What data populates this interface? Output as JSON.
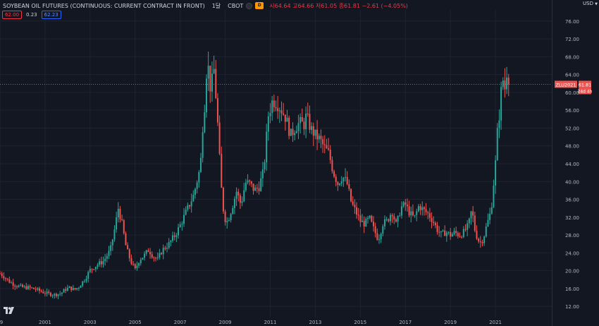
{
  "legend": {
    "title": "SOYBEAN OIL FUTURES (CONTINUOUS: CURRENT CONTRACT IN FRONT)",
    "interval": "1달",
    "exchange": "CBOT",
    "flag_letter": "D",
    "ohlc": "시64.64 고64.66 저61.05 종61.81 −2.61 (−4.05%)"
  },
  "quote": {
    "bid": "62.00",
    "spread": "0.23",
    "ask": "62.23"
  },
  "currency": "USD",
  "price_tag": {
    "symbol": "ZLU2021",
    "price": "61.81",
    "countdown": "24d 4h"
  },
  "colors": {
    "up": "#26a69a",
    "down": "#ef5350",
    "background": "#131722",
    "grid": "#1f2330",
    "text": "#b2b5be"
  },
  "chart_data": {
    "type": "candlestick",
    "title": "SOYBEAN OIL FUTURES (CONTINUOUS: CURRENT CONTRACT IN FRONT)",
    "interval": "monthly",
    "y_ticks": [
      "12.00",
      "16.00",
      "20.00",
      "24.00",
      "28.00",
      "32.00",
      "36.00",
      "40.00",
      "44.00",
      "48.00",
      "52.00",
      "56.00",
      "60.00",
      "64.00",
      "68.00",
      "72.00",
      "76.00"
    ],
    "ylim": [
      9.5,
      78.5
    ],
    "x_ticks": [
      "9",
      "2001",
      "2003",
      "2005",
      "2007",
      "2009",
      "2011",
      "2013",
      "2015",
      "2017",
      "2019",
      "2021"
    ],
    "xlim": [
      1999.0,
      2023.5
    ],
    "last_price": 61.81,
    "close_series": [
      [
        1999.0,
        19.4
      ],
      [
        1999.2,
        18.6
      ],
      [
        1999.4,
        17.6
      ],
      [
        1999.7,
        16.7
      ],
      [
        2000.0,
        16.3
      ],
      [
        2000.3,
        16.2
      ],
      [
        2000.6,
        15.8
      ],
      [
        2000.9,
        15.2
      ],
      [
        2001.1,
        14.9
      ],
      [
        2001.4,
        14.6
      ],
      [
        2001.7,
        14.9
      ],
      [
        2001.9,
        15.8
      ],
      [
        2002.1,
        16.2
      ],
      [
        2002.3,
        15.7
      ],
      [
        2002.5,
        16.4
      ],
      [
        2002.8,
        18.4
      ],
      [
        2003.0,
        20.2
      ],
      [
        2003.3,
        21.3
      ],
      [
        2003.6,
        22.2
      ],
      [
        2003.9,
        24.6
      ],
      [
        2004.1,
        29.6
      ],
      [
        2004.25,
        34.0
      ],
      [
        2004.4,
        31.0
      ],
      [
        2004.6,
        25.2
      ],
      [
        2004.8,
        22.2
      ],
      [
        2005.0,
        20.2
      ],
      [
        2005.2,
        22.6
      ],
      [
        2005.4,
        23.4
      ],
      [
        2005.6,
        24.7
      ],
      [
        2005.8,
        23.2
      ],
      [
        2006.0,
        22.5
      ],
      [
        2006.2,
        24.6
      ],
      [
        2006.5,
        26.0
      ],
      [
        2006.8,
        28.2
      ],
      [
        2007.0,
        30.2
      ],
      [
        2007.3,
        33.6
      ],
      [
        2007.6,
        37.0
      ],
      [
        2007.9,
        43.4
      ],
      [
        2008.0,
        52.5
      ],
      [
        2008.1,
        58.0
      ],
      [
        2008.2,
        67.8
      ],
      [
        2008.35,
        60.5
      ],
      [
        2008.5,
        65.0
      ],
      [
        2008.6,
        58.2
      ],
      [
        2008.7,
        50.2
      ],
      [
        2008.8,
        40.0
      ],
      [
        2008.95,
        32.0
      ],
      [
        2009.1,
        31.0
      ],
      [
        2009.3,
        34.2
      ],
      [
        2009.5,
        37.8
      ],
      [
        2009.7,
        34.8
      ],
      [
        2009.9,
        39.8
      ],
      [
        2010.1,
        39.5
      ],
      [
        2010.3,
        38.0
      ],
      [
        2010.5,
        38.9
      ],
      [
        2010.7,
        42.2
      ],
      [
        2010.8,
        47.8
      ],
      [
        2010.9,
        54.6
      ],
      [
        2011.1,
        58.2
      ],
      [
        2011.3,
        57.6
      ],
      [
        2011.5,
        56.1
      ],
      [
        2011.7,
        54.2
      ],
      [
        2011.9,
        50.3
      ],
      [
        2012.1,
        52.1
      ],
      [
        2012.3,
        53.2
      ],
      [
        2012.5,
        52.8
      ],
      [
        2012.6,
        54.8
      ],
      [
        2012.8,
        51.8
      ],
      [
        2013.0,
        50.4
      ],
      [
        2013.2,
        49.4
      ],
      [
        2013.4,
        47.6
      ],
      [
        2013.6,
        46.3
      ],
      [
        2013.8,
        42.1
      ],
      [
        2014.0,
        39.6
      ],
      [
        2014.2,
        41.2
      ],
      [
        2014.4,
        39.8
      ],
      [
        2014.6,
        35.2
      ],
      [
        2014.8,
        33.2
      ],
      [
        2015.0,
        31.1
      ],
      [
        2015.2,
        30.5
      ],
      [
        2015.4,
        31.8
      ],
      [
        2015.6,
        29.2
      ],
      [
        2015.8,
        27.0
      ],
      [
        2016.0,
        30.6
      ],
      [
        2016.2,
        31.2
      ],
      [
        2016.4,
        33.4
      ],
      [
        2016.6,
        30.1
      ],
      [
        2016.8,
        34.2
      ],
      [
        2017.0,
        34.8
      ],
      [
        2017.2,
        32.8
      ],
      [
        2017.4,
        31.8
      ],
      [
        2017.6,
        34.6
      ],
      [
        2017.8,
        33.6
      ],
      [
        2018.0,
        32.8
      ],
      [
        2018.2,
        31.4
      ],
      [
        2018.4,
        29.3
      ],
      [
        2018.6,
        28.1
      ],
      [
        2018.8,
        28.7
      ],
      [
        2019.0,
        28.0
      ],
      [
        2019.2,
        28.6
      ],
      [
        2019.4,
        27.9
      ],
      [
        2019.6,
        28.7
      ],
      [
        2019.8,
        30.2
      ],
      [
        2019.95,
        33.8
      ],
      [
        2020.1,
        28.6
      ],
      [
        2020.3,
        26.2
      ],
      [
        2020.45,
        27.1
      ],
      [
        2020.6,
        30.0
      ],
      [
        2020.8,
        33.4
      ],
      [
        2020.9,
        38.7
      ],
      [
        2021.0,
        44.2
      ],
      [
        2021.1,
        52.3
      ],
      [
        2021.2,
        56.2
      ],
      [
        2021.3,
        64.1
      ],
      [
        2021.4,
        60.2
      ],
      [
        2021.5,
        64.6
      ],
      [
        2021.6,
        61.81
      ]
    ]
  }
}
